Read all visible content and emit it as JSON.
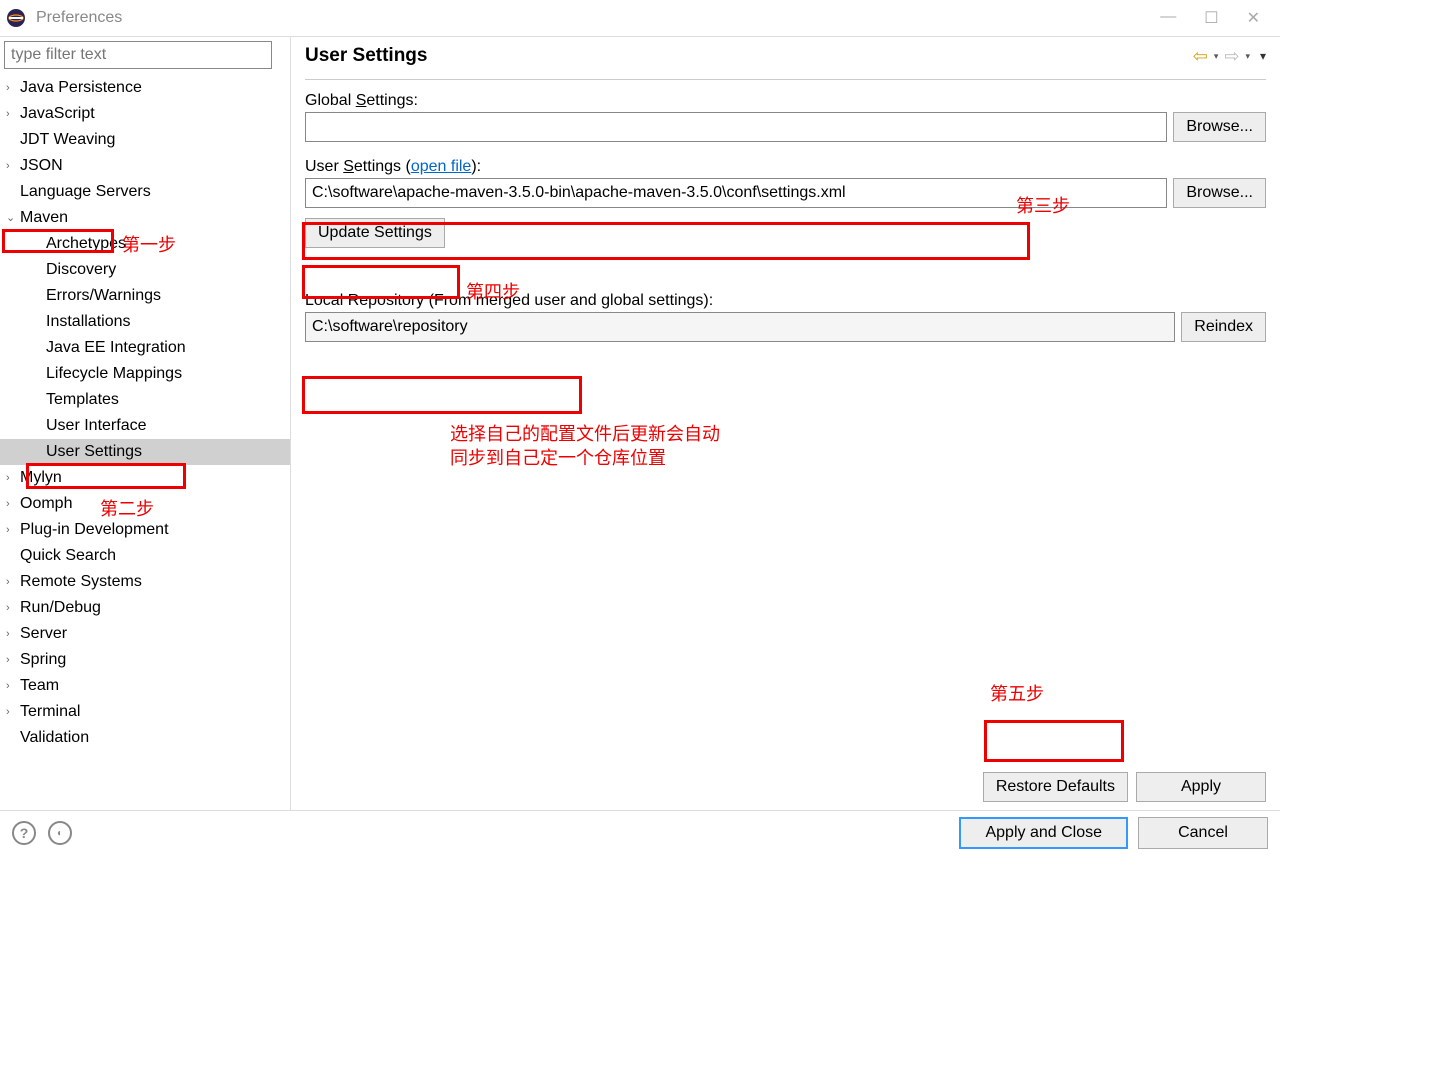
{
  "window": {
    "title": "Preferences",
    "minimize": "—",
    "maximize": "☐",
    "close": "✕"
  },
  "filter": {
    "placeholder": "type filter text"
  },
  "tree": {
    "items": [
      {
        "label": "Java Persistence",
        "expand": "›",
        "child": false
      },
      {
        "label": "JavaScript",
        "expand": "›",
        "child": false
      },
      {
        "label": "JDT Weaving",
        "expand": "",
        "child": false
      },
      {
        "label": "JSON",
        "expand": "›",
        "child": false
      },
      {
        "label": "Language Servers",
        "expand": "",
        "child": false
      },
      {
        "label": "Maven",
        "expand": "⌄",
        "child": false
      },
      {
        "label": "Archetypes",
        "expand": "",
        "child": true
      },
      {
        "label": "Discovery",
        "expand": "",
        "child": true
      },
      {
        "label": "Errors/Warnings",
        "expand": "",
        "child": true
      },
      {
        "label": "Installations",
        "expand": "",
        "child": true
      },
      {
        "label": "Java EE Integration",
        "expand": "",
        "child": true
      },
      {
        "label": "Lifecycle Mappings",
        "expand": "",
        "child": true
      },
      {
        "label": "Templates",
        "expand": "",
        "child": true
      },
      {
        "label": "User Interface",
        "expand": "",
        "child": true
      },
      {
        "label": "User Settings",
        "expand": "",
        "child": true,
        "selected": true
      },
      {
        "label": "Mylyn",
        "expand": "›",
        "child": false
      },
      {
        "label": "Oomph",
        "expand": "›",
        "child": false
      },
      {
        "label": "Plug-in Development",
        "expand": "›",
        "child": false
      },
      {
        "label": "Quick Search",
        "expand": "",
        "child": false
      },
      {
        "label": "Remote Systems",
        "expand": "›",
        "child": false
      },
      {
        "label": "Run/Debug",
        "expand": "›",
        "child": false
      },
      {
        "label": "Server",
        "expand": "›",
        "child": false
      },
      {
        "label": "Spring",
        "expand": "›",
        "child": false
      },
      {
        "label": "Team",
        "expand": "›",
        "child": false
      },
      {
        "label": "Terminal",
        "expand": "›",
        "child": false
      },
      {
        "label": "Validation",
        "expand": "",
        "child": false
      }
    ]
  },
  "content": {
    "title": "User Settings",
    "global_label_pre": "Global ",
    "global_label_u": "S",
    "global_label_post": "ettings:",
    "global_value": "",
    "browse_label": "Browse...",
    "user_label_pre": "User ",
    "user_label_u": "S",
    "user_label_post": "ettings (",
    "open_file": "open file",
    "user_label_end": "):",
    "user_value": "C:\\software\\apache-maven-3.5.0-bin\\apache-maven-3.5.0\\conf\\settings.xml",
    "update_button": "Update Settings",
    "local_repo_label": "Local Repository (From merged user and global settings):",
    "local_repo_value": "C:\\software\\repository",
    "reindex_label": "Reindex",
    "restore_defaults": "Restore Defaults",
    "apply": "Apply"
  },
  "bottom": {
    "help": "?",
    "apply_close": "Apply and Close",
    "cancel": "Cancel"
  },
  "annotations": {
    "step1": "第一步",
    "step2": "第二步",
    "step3": "第三步",
    "step4": "第四步",
    "step5": "第五步",
    "note1": "选择自己的配置文件后更新会自动",
    "note2": "同步到自己定一个仓库位置"
  }
}
